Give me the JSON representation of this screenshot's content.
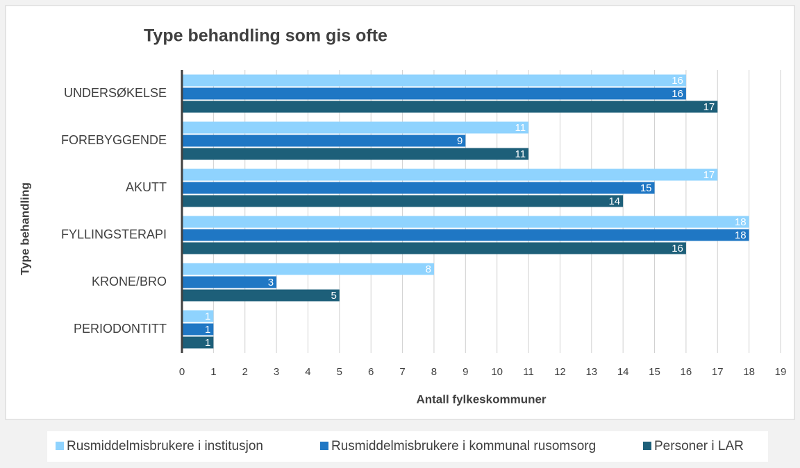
{
  "chart_data": {
    "type": "hbar",
    "title": "Type behandling som gis ofte",
    "x_label": "Antall fylkeskommuner",
    "y_label": "Type behandling",
    "categories": [
      "UNDERSØKELSE",
      "FOREBYGGENDE",
      "AKUTT",
      "FYLLINGSTERAPI",
      "KRONE/BRO",
      "PERIODONTITT"
    ],
    "series": [
      {
        "name": "Rusmiddelmisbrukere i institusjon",
        "color": "#8fd3fe",
        "values": [
          16,
          11,
          17,
          18,
          8,
          1
        ]
      },
      {
        "name": "Rusmiddelmisbrukere i kommunal rusomsorg",
        "color": "#1f77c4",
        "values": [
          16,
          9,
          15,
          18,
          3,
          1
        ]
      },
      {
        "name": "Personer i LAR",
        "color": "#1d5f79",
        "values": [
          17,
          11,
          14,
          16,
          5,
          1
        ]
      }
    ],
    "xlim": [
      0,
      19
    ],
    "xticks": [
      0,
      1,
      2,
      3,
      4,
      5,
      6,
      7,
      8,
      9,
      10,
      11,
      12,
      13,
      14,
      15,
      16,
      17,
      18,
      19
    ],
    "grid": true,
    "legend": "bottom"
  }
}
